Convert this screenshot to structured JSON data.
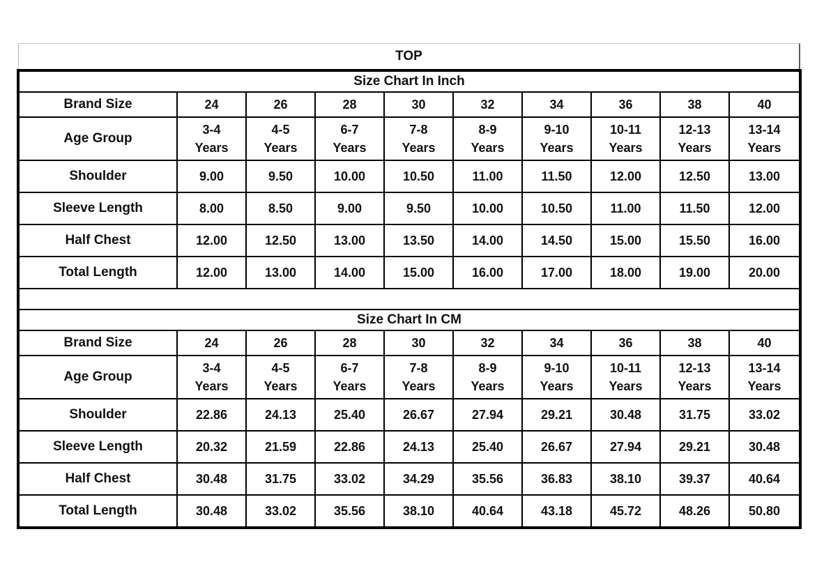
{
  "title": "TOP",
  "colors": {
    "border": "#000000",
    "text": "#111111",
    "background": "#ffffff",
    "top_row_border": "#b5b5b5"
  },
  "sections": [
    {
      "heading": "Size Chart In Inch",
      "brand_row_label": "Brand Size",
      "brand_sizes": [
        "24",
        "26",
        "28",
        "30",
        "32",
        "34",
        "36",
        "38",
        "40"
      ],
      "age_row_label": "Age Group",
      "age_groups": [
        "3-4",
        "4-5",
        "6-7",
        "7-8",
        "8-9",
        "9-10",
        "10-11",
        "12-13",
        "13-14"
      ],
      "age_suffix": "Years",
      "rows": [
        {
          "label": "Shoulder",
          "values": [
            "9.00",
            "9.50",
            "10.00",
            "10.50",
            "11.00",
            "11.50",
            "12.00",
            "12.50",
            "13.00"
          ]
        },
        {
          "label": "Sleeve Length",
          "values": [
            "8.00",
            "8.50",
            "9.00",
            "9.50",
            "10.00",
            "10.50",
            "11.00",
            "11.50",
            "12.00"
          ]
        },
        {
          "label": "Half Chest",
          "values": [
            "12.00",
            "12.50",
            "13.00",
            "13.50",
            "14.00",
            "14.50",
            "15.00",
            "15.50",
            "16.00"
          ]
        },
        {
          "label": "Total Length",
          "values": [
            "12.00",
            "13.00",
            "14.00",
            "15.00",
            "16.00",
            "17.00",
            "18.00",
            "19.00",
            "20.00"
          ]
        }
      ]
    },
    {
      "heading": "Size Chart In CM",
      "brand_row_label": "Brand Size",
      "brand_sizes": [
        "24",
        "26",
        "28",
        "30",
        "32",
        "34",
        "36",
        "38",
        "40"
      ],
      "age_row_label": "Age Group",
      "age_groups": [
        "3-4",
        "4-5",
        "6-7",
        "7-8",
        "8-9",
        "9-10",
        "10-11",
        "12-13",
        "13-14"
      ],
      "age_suffix": "Years",
      "rows": [
        {
          "label": "Shoulder",
          "values": [
            "22.86",
            "24.13",
            "25.40",
            "26.67",
            "27.94",
            "29.21",
            "30.48",
            "31.75",
            "33.02"
          ]
        },
        {
          "label": "Sleeve Length",
          "values": [
            "20.32",
            "21.59",
            "22.86",
            "24.13",
            "25.40",
            "26.67",
            "27.94",
            "29.21",
            "30.48"
          ]
        },
        {
          "label": "Half Chest",
          "values": [
            "30.48",
            "31.75",
            "33.02",
            "34.29",
            "35.56",
            "36.83",
            "38.10",
            "39.37",
            "40.64"
          ]
        },
        {
          "label": "Total Length",
          "values": [
            "30.48",
            "33.02",
            "35.56",
            "38.10",
            "40.64",
            "43.18",
            "45.72",
            "48.26",
            "50.80"
          ]
        }
      ]
    }
  ]
}
